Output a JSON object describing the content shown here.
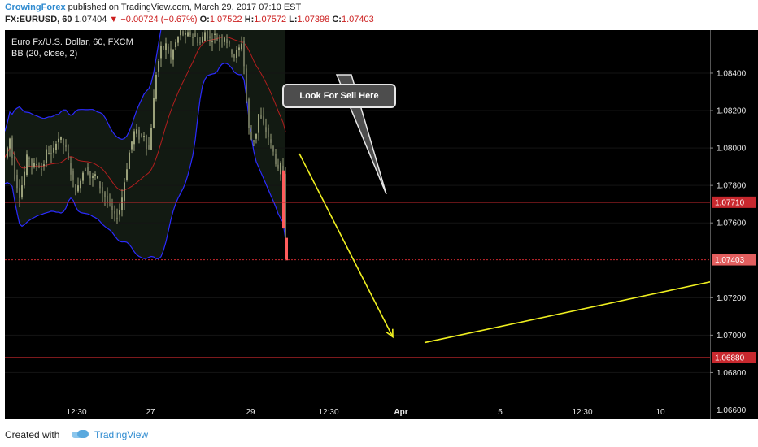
{
  "header": {
    "publisher": "GrowingForex",
    "published_text": "published on TradingView.com, March 29, 2017 07:10 EST",
    "symbol": "FX:EURUSD, 60",
    "last_price": "1.07404",
    "change_arrow": "▼",
    "change": "−0.00724 (−0.67%)",
    "open_label": "O:",
    "open": "1.07522",
    "high_label": "H:",
    "high": "1.07572",
    "low_label": "L:",
    "low": "1.07398",
    "close_label": "C:",
    "close": "1.07403"
  },
  "legend": {
    "instrument": "Euro Fx/U.S. Dollar, 60, FXCM",
    "indicator": "BB (20, close, 2)"
  },
  "annotation": {
    "callout_text": "Look For Sell Here"
  },
  "footer": {
    "created_with": "Created with",
    "brand": "TradingView"
  },
  "colors": {
    "background": "#000000",
    "bb_band": "#2b2bff",
    "bb_basis": "#b21e1e",
    "level_line": "#c8282e",
    "arrow": "#f0f020",
    "candle": "#9aa07a",
    "axis_text": "#e8e8e8",
    "last_price_bg": "#e25e5e"
  },
  "chart_data": {
    "type": "candlestick",
    "symbol": "FX:EURUSD",
    "timeframe": "60",
    "ylim": [
      1.0655,
      1.0863
    ],
    "price_ticks": [
      1.084,
      1.082,
      1.08,
      1.078,
      1.076,
      1.072,
      1.07,
      1.068,
      1.066
    ],
    "time_ticks": [
      "12:30",
      "27",
      "29",
      "12:30",
      "Apr",
      "5",
      "12:30",
      "10"
    ],
    "horizontal_levels": [
      {
        "price": 1.0771,
        "label": "1.07710",
        "style": "solid"
      },
      {
        "price": 1.07403,
        "label": "1.07403",
        "style": "dotted",
        "kind": "last_price"
      },
      {
        "price": 1.0688,
        "label": "1.06880",
        "style": "solid"
      }
    ],
    "price_path": [
      [
        0,
        1.0795
      ],
      [
        6,
        1.0805
      ],
      [
        12,
        1.0785
      ],
      [
        18,
        1.0775
      ],
      [
        22,
        1.0782
      ],
      [
        28,
        1.0797
      ],
      [
        34,
        1.079
      ],
      [
        40,
        1.0792
      ],
      [
        46,
        1.0788
      ],
      [
        52,
        1.08
      ],
      [
        58,
        1.0795
      ],
      [
        64,
        1.0806
      ],
      [
        70,
        1.0804
      ],
      [
        76,
        1.0798
      ],
      [
        82,
        1.0785
      ],
      [
        88,
        1.0775
      ],
      [
        94,
        1.0786
      ],
      [
        100,
        1.079
      ],
      [
        106,
        1.0783
      ],
      [
        112,
        1.0786
      ],
      [
        118,
        1.0778
      ],
      [
        124,
        1.0773
      ],
      [
        130,
        1.0768
      ],
      [
        136,
        1.0762
      ],
      [
        142,
        1.0768
      ],
      [
        148,
        1.0785
      ],
      [
        154,
        1.08
      ],
      [
        160,
        1.081
      ],
      [
        166,
        1.0805
      ],
      [
        172,
        1.0808
      ],
      [
        176,
        1.0795
      ],
      [
        180,
        1.0812
      ],
      [
        186,
        1.084
      ],
      [
        192,
        1.0853
      ],
      [
        198,
        1.0855
      ],
      [
        204,
        1.0848
      ],
      [
        210,
        1.0856
      ],
      [
        216,
        1.0862
      ],
      [
        222,
        1.086
      ],
      [
        228,
        1.0861
      ],
      [
        234,
        1.0859
      ],
      [
        240,
        1.0856
      ],
      [
        246,
        1.0862
      ],
      [
        252,
        1.0858
      ],
      [
        258,
        1.086
      ],
      [
        264,
        1.0857
      ],
      [
        270,
        1.086
      ],
      [
        276,
        1.0854
      ],
      [
        282,
        1.0849
      ],
      [
        288,
        1.0853
      ],
      [
        292,
        1.0858
      ],
      [
        296,
        1.083
      ],
      [
        300,
        1.081
      ],
      [
        304,
        1.0803
      ],
      [
        308,
        1.0805
      ],
      [
        312,
        1.0818
      ],
      [
        318,
        1.0812
      ],
      [
        324,
        1.0806
      ],
      [
        328,
        1.08
      ],
      [
        332,
        1.0795
      ],
      [
        336,
        1.0787
      ],
      [
        340,
        1.0791
      ],
      [
        343,
        1.0786
      ],
      [
        345,
        1.0752
      ],
      [
        347,
        1.0743
      ]
    ],
    "projection_arrows": [
      {
        "from": [
          362,
          1.0797
        ],
        "to": [
          477,
          1.0699
        ],
        "arrowhead": true
      },
      {
        "from": [
          516,
          1.0696
        ],
        "to": [
          873,
          1.0729
        ],
        "arrowhead": false
      }
    ]
  }
}
